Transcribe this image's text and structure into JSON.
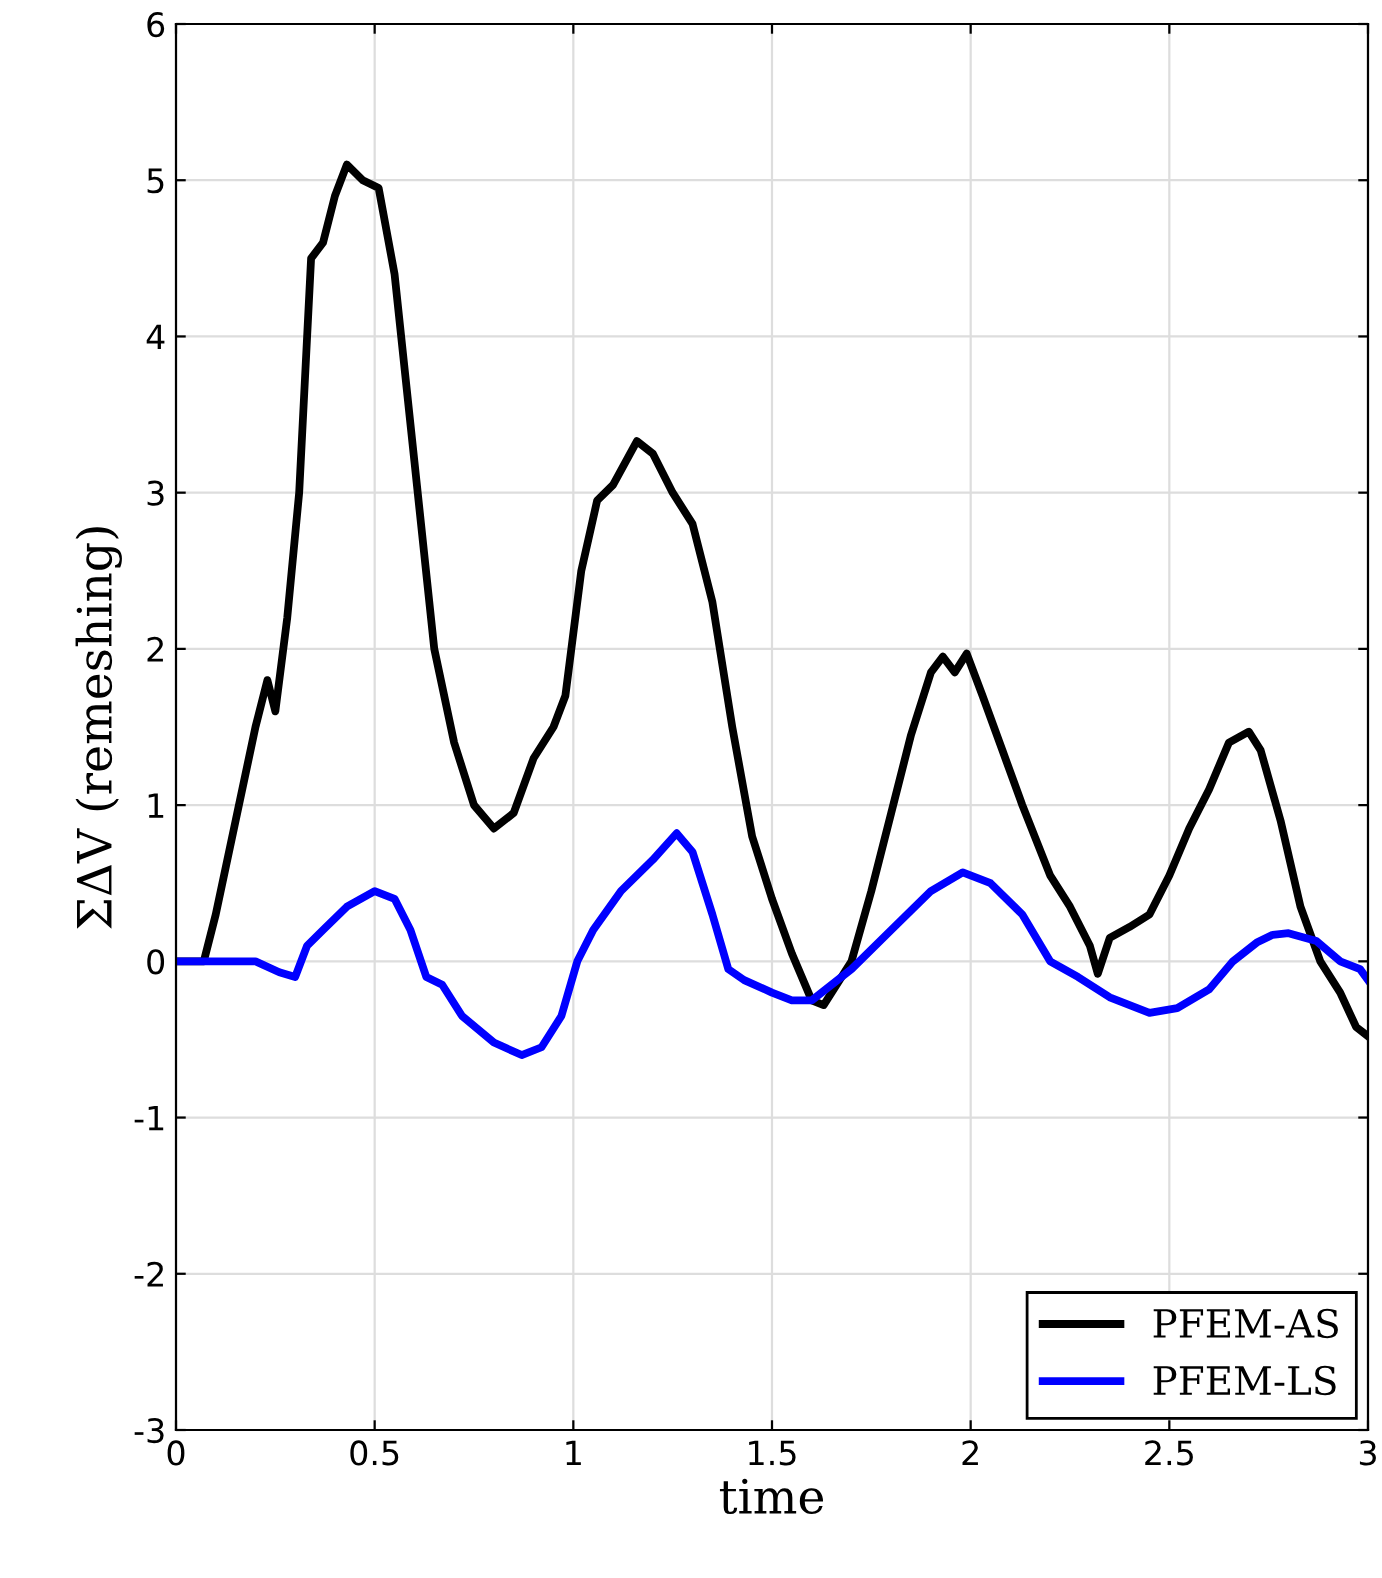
{
  "chart_data": {
    "type": "line",
    "xlabel": "time",
    "ylabel": "ΣΔV (remeshing)",
    "xlim": [
      0,
      3
    ],
    "ylim": [
      -3,
      6
    ],
    "xticks": [
      0,
      0.5,
      1,
      1.5,
      2,
      2.5,
      3
    ],
    "yticks": [
      -3,
      -2,
      -1,
      0,
      1,
      2,
      3,
      4,
      5,
      6
    ],
    "grid": true,
    "legend": "bottom right",
    "line_style": "solid",
    "marker": "none",
    "series": [
      {
        "name": "PFEM-AS",
        "color": "#000000",
        "x": [
          0,
          0.07,
          0.1,
          0.15,
          0.2,
          0.23,
          0.25,
          0.28,
          0.31,
          0.34,
          0.37,
          0.4,
          0.43,
          0.47,
          0.51,
          0.55,
          0.6,
          0.65,
          0.7,
          0.75,
          0.8,
          0.85,
          0.9,
          0.95,
          0.98,
          1.02,
          1.06,
          1.1,
          1.16,
          1.2,
          1.25,
          1.3,
          1.35,
          1.4,
          1.45,
          1.5,
          1.55,
          1.6,
          1.63,
          1.7,
          1.75,
          1.8,
          1.85,
          1.9,
          1.93,
          1.96,
          1.99,
          2.03,
          2.08,
          2.13,
          2.2,
          2.25,
          2.3,
          2.32,
          2.35,
          2.4,
          2.45,
          2.5,
          2.55,
          2.6,
          2.65,
          2.7,
          2.73,
          2.78,
          2.83,
          2.88,
          2.93,
          2.97,
          3.0
        ],
        "values": [
          0,
          0,
          0.3,
          0.9,
          1.5,
          1.8,
          1.6,
          2.2,
          3.0,
          4.5,
          4.6,
          4.9,
          5.1,
          5.0,
          4.95,
          4.4,
          3.2,
          2.0,
          1.4,
          1.0,
          0.85,
          0.95,
          1.3,
          1.5,
          1.7,
          2.5,
          2.95,
          3.05,
          3.33,
          3.25,
          3.0,
          2.8,
          2.3,
          1.5,
          0.8,
          0.4,
          0.05,
          -0.25,
          -0.28,
          0.0,
          0.45,
          0.95,
          1.45,
          1.85,
          1.95,
          1.85,
          1.97,
          1.7,
          1.35,
          1.0,
          0.55,
          0.35,
          0.1,
          -0.08,
          0.15,
          0.22,
          0.3,
          0.55,
          0.85,
          1.1,
          1.4,
          1.47,
          1.35,
          0.9,
          0.35,
          0.0,
          -0.2,
          -0.42,
          -0.48
        ]
      },
      {
        "name": "PFEM-LS",
        "color": "#0000ff",
        "x": [
          0,
          0.2,
          0.26,
          0.3,
          0.33,
          0.37,
          0.43,
          0.5,
          0.55,
          0.59,
          0.63,
          0.67,
          0.72,
          0.8,
          0.87,
          0.92,
          0.97,
          1.01,
          1.05,
          1.12,
          1.2,
          1.26,
          1.3,
          1.35,
          1.39,
          1.43,
          1.5,
          1.55,
          1.6,
          1.7,
          1.8,
          1.9,
          1.98,
          2.05,
          2.13,
          2.2,
          2.27,
          2.35,
          2.45,
          2.52,
          2.6,
          2.66,
          2.72,
          2.76,
          2.8,
          2.87,
          2.93,
          2.98,
          3.0
        ],
        "values": [
          0,
          0,
          -0.07,
          -0.1,
          0.1,
          0.2,
          0.35,
          0.45,
          0.4,
          0.2,
          -0.1,
          -0.15,
          -0.35,
          -0.52,
          -0.6,
          -0.55,
          -0.35,
          0.0,
          0.2,
          0.45,
          0.65,
          0.82,
          0.7,
          0.3,
          -0.05,
          -0.12,
          -0.2,
          -0.25,
          -0.25,
          -0.05,
          0.2,
          0.45,
          0.57,
          0.5,
          0.3,
          0.0,
          -0.1,
          -0.23,
          -0.33,
          -0.3,
          -0.18,
          0.0,
          0.12,
          0.17,
          0.18,
          0.13,
          0.0,
          -0.05,
          -0.12
        ]
      }
    ]
  }
}
